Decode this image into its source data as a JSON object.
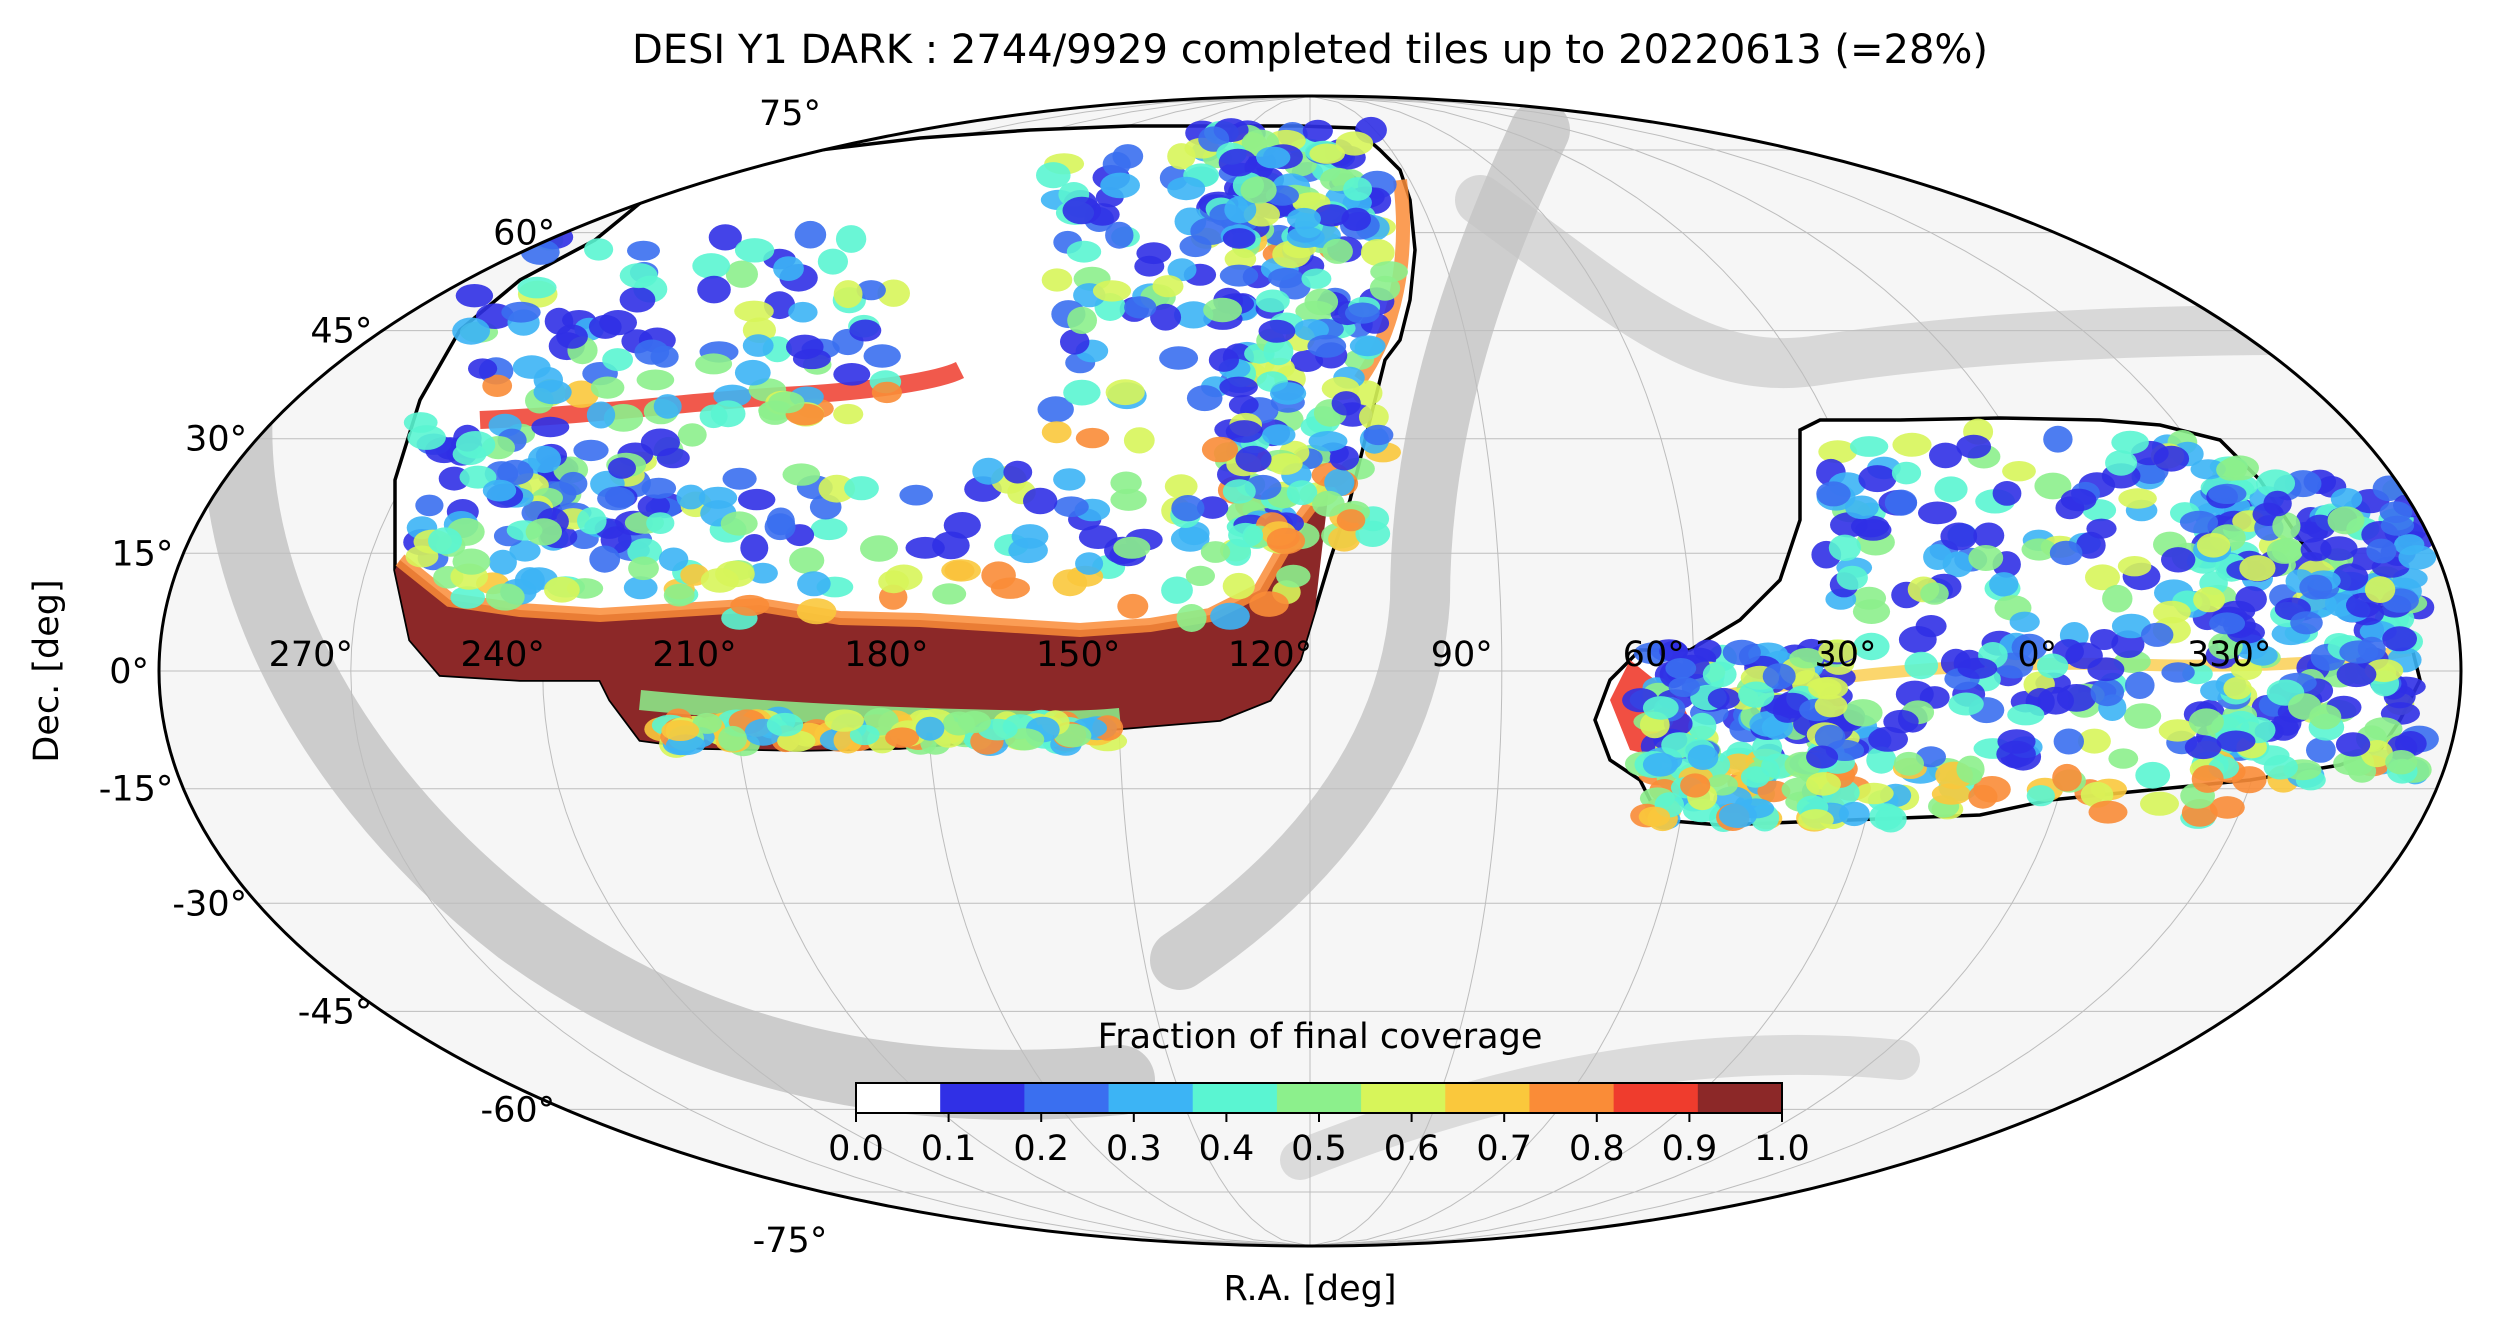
{
  "title": "DESI Y1 DARK : 2744/9929 completed tiles up to 20220613 (=28%)",
  "xlabel": "R.A. [deg]",
  "ylabel": "Dec. [deg]",
  "projection": "mollweide",
  "ra_tick_labels": [
    "270°",
    "240°",
    "210°",
    "180°",
    "150°",
    "120°",
    "90°",
    "60°",
    "30°",
    "0°",
    "330°"
  ],
  "ra_tick_values": [
    270,
    240,
    210,
    180,
    150,
    120,
    90,
    60,
    30,
    0,
    330
  ],
  "dec_tick_labels": [
    "75°",
    "60°",
    "45°",
    "30°",
    "15°",
    "0°",
    "-15°",
    "-30°",
    "-45°",
    "-60°",
    "-75°"
  ],
  "dec_tick_values": [
    75,
    60,
    45,
    30,
    15,
    0,
    -15,
    -30,
    -45,
    -60,
    -75
  ],
  "colorbar": {
    "label": "Fraction of final coverage",
    "tick_labels": [
      "0.0",
      "0.1",
      "0.2",
      "0.3",
      "0.4",
      "0.5",
      "0.6",
      "0.7",
      "0.8",
      "0.9",
      "1.0"
    ],
    "range": [
      0,
      1
    ],
    "bins": 11,
    "colors": [
      "#ffffff",
      "#3030e6",
      "#3a6ff0",
      "#3cb4f5",
      "#5af5d2",
      "#8cf08c",
      "#d7f55a",
      "#fac83c",
      "#fa8c37",
      "#ef3c2d",
      "#8c2828"
    ]
  },
  "colors": {
    "background_galaxy": "#c0c0c0",
    "sky": "#f6f6f6",
    "footprint_outline": "#000000",
    "complete": "#8c2828"
  }
}
